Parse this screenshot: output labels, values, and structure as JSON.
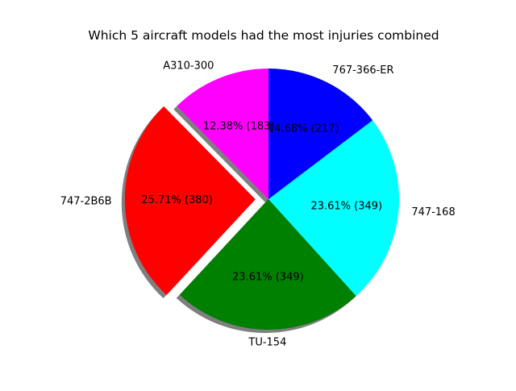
{
  "chart_data": {
    "type": "pie",
    "title": "Which 5 aircraft models had the most injuries combined",
    "slices": [
      {
        "label": "A310-300",
        "value": 183,
        "percent_label": "12.38%  (183)",
        "color": "#ff00ff",
        "exploded": false
      },
      {
        "label": "747-2B6B",
        "value": 380,
        "percent_label": "25.71%  (380)",
        "color": "#ff0000",
        "exploded": true
      },
      {
        "label": "TU-154",
        "value": 349,
        "percent_label": "23.61%  (349)",
        "color": "#008000",
        "exploded": false
      },
      {
        "label": "747-168",
        "value": 349,
        "percent_label": "23.61%  (349)",
        "color": "#00ffff",
        "exploded": false
      },
      {
        "label": "767-366-ER",
        "value": 217,
        "percent_label": "14.68%  (217)",
        "color": "#0000ff",
        "exploded": false
      }
    ],
    "start_angle_deg": 90,
    "direction": "counterclockwise",
    "shadow": true,
    "legend": false
  }
}
